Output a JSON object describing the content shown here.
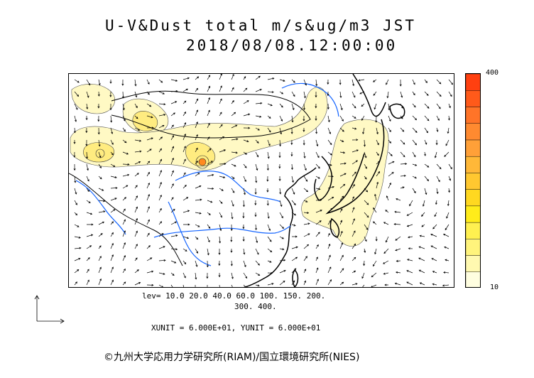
{
  "title": {
    "line1": "U-V&Dust total m/s&ug/m3 JST",
    "line2": "2018/08/08.12:00:00"
  },
  "colorbar": {
    "max_label": "400",
    "min_label": "10",
    "colors": [
      "#fffee0",
      "#fff9b0",
      "#fff47c",
      "#fff050",
      "#ffec1a",
      "#ffd820",
      "#ffc830",
      "#ffb838",
      "#ffa038",
      "#ff8a30",
      "#ff7428",
      "#ff5a1a",
      "#ff4010"
    ],
    "levels": [
      10,
      20,
      40,
      60,
      100,
      150,
      200,
      300,
      400
    ]
  },
  "legend": {
    "lev_line1": "lev= 10.0 20.0 40.0 60.0 100. 150. 200.",
    "lev_line2": "300. 400."
  },
  "units": {
    "text": "XUNIT = 6.000E+01, YUNIT = 6.000E+01"
  },
  "footer": {
    "copyright": "©九州大学応用力学研究所(RIAM)/国立環境研究所(NIES)"
  },
  "map": {
    "dust_color": "#fff9c4",
    "dust_dense_color": "#ffec80",
    "hotspot_color": "#ff8a20",
    "river_color": "#1565ff",
    "coast_color": "#000000",
    "wind_arrow_color": "#000000"
  }
}
